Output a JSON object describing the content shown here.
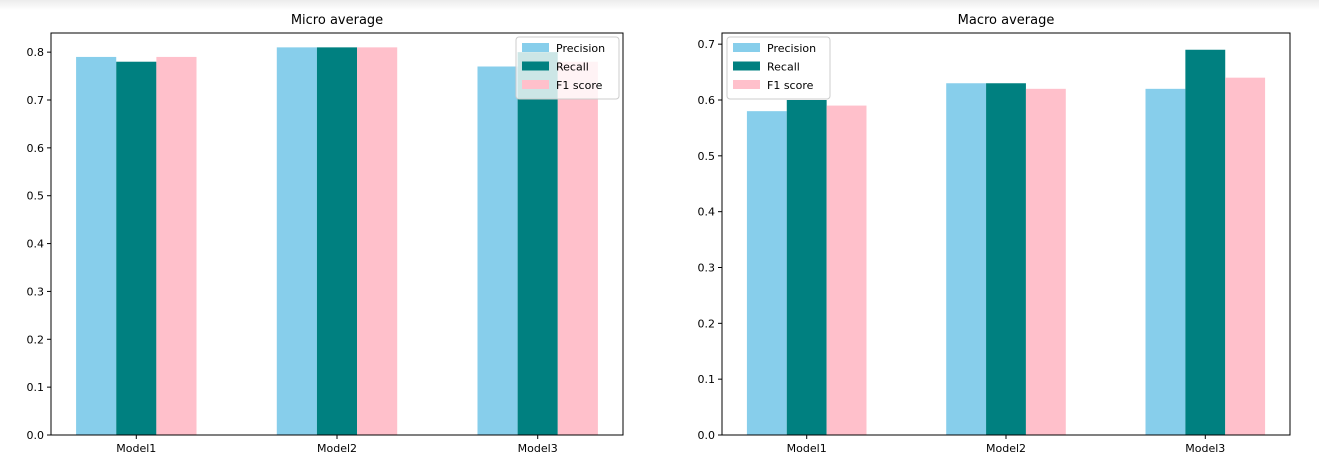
{
  "chart_data": [
    {
      "type": "bar",
      "title": "Micro average",
      "xlabel": "",
      "ylabel": "",
      "categories": [
        "Model1",
        "Model2",
        "Model3"
      ],
      "series": [
        {
          "name": "Precision",
          "color": "#87ceeb",
          "values": [
            0.79,
            0.81,
            0.77
          ]
        },
        {
          "name": "Recall",
          "color": "#008080",
          "values": [
            0.78,
            0.81,
            0.8
          ]
        },
        {
          "name": "F1 score",
          "color": "#ffc0cb",
          "values": [
            0.79,
            0.81,
            0.78
          ]
        }
      ],
      "ylim": [
        0,
        0.84
      ],
      "yticks": [
        0.0,
        0.1,
        0.2,
        0.3,
        0.4,
        0.5,
        0.6,
        0.7,
        0.8
      ],
      "ytick_labels": [
        "0.0",
        "0.1",
        "0.2",
        "0.3",
        "0.4",
        "0.5",
        "0.6",
        "0.7",
        "0.8"
      ],
      "legend_position": "upper right",
      "grid": false
    },
    {
      "type": "bar",
      "title": "Macro average",
      "xlabel": "",
      "ylabel": "",
      "categories": [
        "Model1",
        "Model2",
        "Model3"
      ],
      "series": [
        {
          "name": "Precision",
          "color": "#87ceeb",
          "values": [
            0.58,
            0.63,
            0.62
          ]
        },
        {
          "name": "Recall",
          "color": "#008080",
          "values": [
            0.6,
            0.63,
            0.69
          ]
        },
        {
          "name": "F1 score",
          "color": "#ffc0cb",
          "values": [
            0.59,
            0.62,
            0.64
          ]
        }
      ],
      "ylim": [
        0,
        0.72
      ],
      "yticks": [
        0.0,
        0.1,
        0.2,
        0.3,
        0.4,
        0.5,
        0.6,
        0.7
      ],
      "ytick_labels": [
        "0.0",
        "0.1",
        "0.2",
        "0.3",
        "0.4",
        "0.5",
        "0.6",
        "0.7"
      ],
      "legend_position": "upper left",
      "grid": false
    }
  ]
}
